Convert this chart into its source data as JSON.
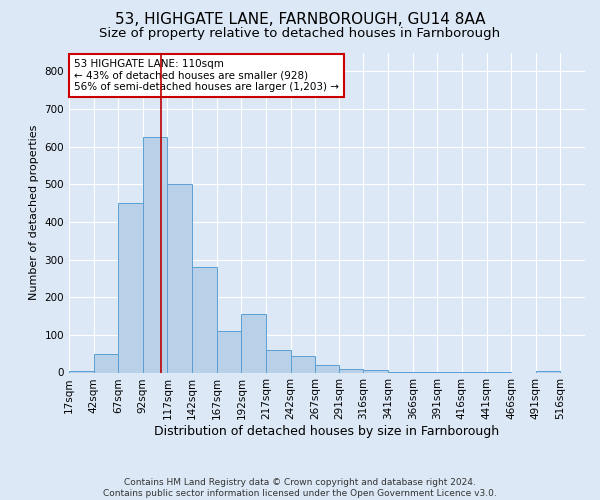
{
  "title": "53, HIGHGATE LANE, FARNBOROUGH, GU14 8AA",
  "subtitle": "Size of property relative to detached houses in Farnborough",
  "xlabel": "Distribution of detached houses by size in Farnborough",
  "ylabel": "Number of detached properties",
  "footer_line1": "Contains HM Land Registry data © Crown copyright and database right 2024.",
  "footer_line2": "Contains public sector information licensed under the Open Government Licence v3.0.",
  "bar_edges": [
    17,
    42,
    67,
    92,
    117,
    142,
    167,
    192,
    217,
    242,
    267,
    291,
    316,
    341,
    366,
    391,
    416,
    441,
    466,
    491,
    516
  ],
  "bar_heights": [
    5,
    50,
    450,
    625,
    500,
    280,
    110,
    155,
    60,
    45,
    20,
    8,
    6,
    2,
    2,
    2,
    2,
    2,
    0,
    5
  ],
  "bar_color": "#b8d0e8",
  "bar_edge_color": "#5a9fd4",
  "vline_x": 110,
  "vline_color": "#bb0000",
  "annotation_text": "53 HIGHGATE LANE: 110sqm\n← 43% of detached houses are smaller (928)\n56% of semi-detached houses are larger (1,203) →",
  "annotation_box_facecolor": "#ffffff",
  "annotation_box_edgecolor": "#cc0000",
  "ylim": [
    0,
    850
  ],
  "yticks": [
    0,
    100,
    200,
    300,
    400,
    500,
    600,
    700,
    800
  ],
  "xlim_left": 17,
  "xlim_right": 541,
  "bg_color": "#dce8f5",
  "plot_bg_color": "#dce8f5",
  "grid_color": "#ffffff",
  "title_fontsize": 11,
  "subtitle_fontsize": 9.5,
  "xlabel_fontsize": 9,
  "ylabel_fontsize": 8,
  "tick_fontsize": 7.5,
  "footer_fontsize": 6.5
}
